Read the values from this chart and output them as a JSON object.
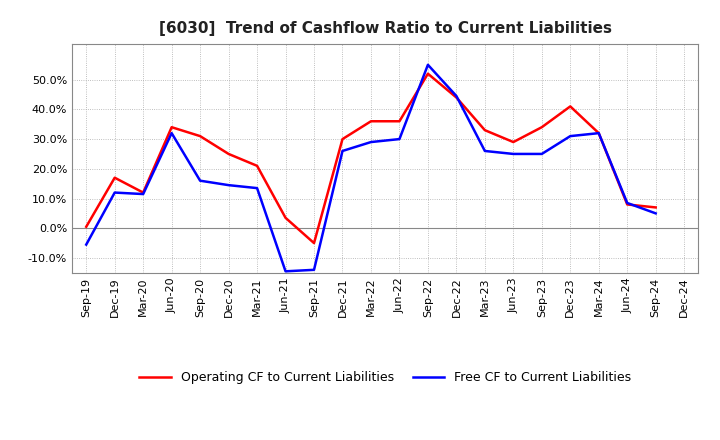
{
  "title": "[6030]  Trend of Cashflow Ratio to Current Liabilities",
  "x_labels": [
    "Sep-19",
    "Dec-19",
    "Mar-20",
    "Jun-20",
    "Sep-20",
    "Dec-20",
    "Mar-21",
    "Jun-21",
    "Sep-21",
    "Dec-21",
    "Mar-22",
    "Jun-22",
    "Sep-22",
    "Dec-22",
    "Mar-23",
    "Jun-23",
    "Sep-23",
    "Dec-23",
    "Mar-24",
    "Jun-24",
    "Sep-24",
    "Dec-24"
  ],
  "operating_cf": [
    0.5,
    17.0,
    12.0,
    34.0,
    31.0,
    25.0,
    21.0,
    3.5,
    -5.0,
    30.0,
    36.0,
    36.0,
    52.0,
    44.0,
    33.0,
    29.0,
    34.0,
    41.0,
    32.0,
    8.0,
    7.0,
    null
  ],
  "free_cf": [
    -5.5,
    12.0,
    11.5,
    32.0,
    16.0,
    14.5,
    13.5,
    -14.5,
    -14.0,
    26.0,
    29.0,
    30.0,
    55.0,
    44.5,
    26.0,
    25.0,
    25.0,
    31.0,
    32.0,
    8.5,
    5.0,
    null
  ],
  "operating_color": "#FF0000",
  "free_color": "#0000FF",
  "ylim": [
    -15,
    62
  ],
  "yticks": [
    -10.0,
    0.0,
    10.0,
    20.0,
    30.0,
    40.0,
    50.0
  ],
  "grid_color": "#aaaaaa",
  "background_color": "#ffffff",
  "legend_op": "Operating CF to Current Liabilities",
  "legend_free": "Free CF to Current Liabilities",
  "title_fontsize": 11,
  "tick_fontsize": 8
}
